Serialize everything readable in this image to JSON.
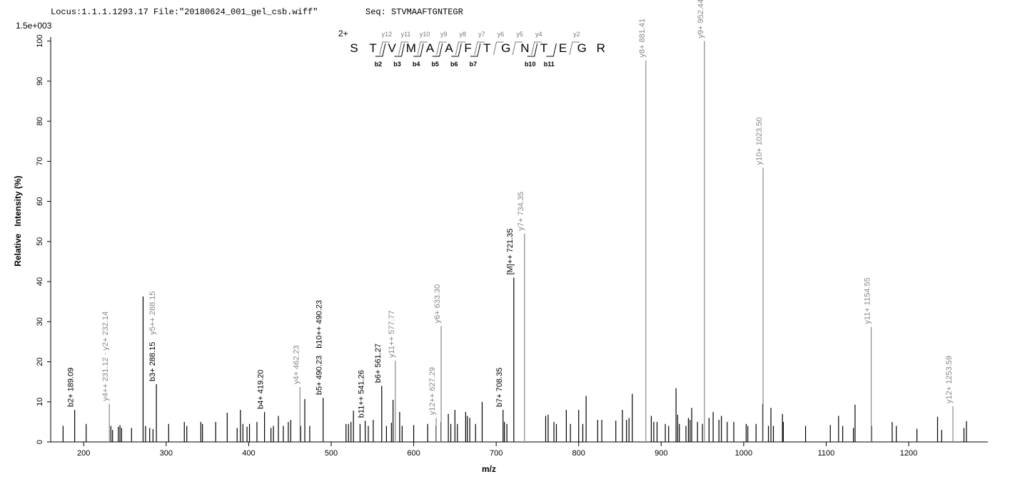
{
  "chart_data": {
    "type": "spectrum",
    "header": {
      "locus": "Locus:1.1.1.1293.17 File:\"20180624_001_gel_csb.wiff\"",
      "seq": "Seq: STVMAAFTGNTEGR"
    },
    "scale_label": "1.5e+003",
    "ylabel": "Relative   Intensity (%)",
    "xlabel": "m/z",
    "xlim": [
      160,
      1296
    ],
    "ylim": [
      0,
      101
    ],
    "xticks": [
      200,
      300,
      400,
      500,
      600,
      700,
      800,
      900,
      1000,
      1100,
      1200
    ],
    "yticks": [
      0,
      10,
      20,
      30,
      40,
      50,
      60,
      70,
      80,
      90,
      100
    ],
    "color": "#000000",
    "x": [
      175,
      203,
      233,
      235,
      242,
      244,
      246,
      258,
      275,
      280,
      284,
      303,
      322,
      325,
      342,
      344,
      360,
      374,
      386,
      390,
      393,
      398,
      401,
      410,
      427,
      430,
      436,
      442,
      448,
      451,
      463,
      468,
      474,
      518,
      521,
      524,
      527,
      535,
      545,
      551,
      567,
      573,
      575,
      583,
      586,
      600,
      617,
      627,
      633,
      642,
      645,
      650,
      653,
      663,
      665,
      668,
      675,
      683,
      710,
      713,
      760,
      763,
      770,
      773,
      785,
      790,
      800,
      805,
      809,
      823,
      828,
      845,
      853,
      858,
      861,
      865,
      888,
      891,
      895,
      905,
      909,
      918,
      920,
      922,
      930,
      933,
      935,
      937,
      944,
      950,
      958,
      963,
      970,
      973,
      980,
      988,
      1003,
      1005,
      1015,
      1023,
      1030,
      1033,
      1036,
      1047,
      1048,
      1075,
      1105,
      1115,
      1120,
      1133,
      1135,
      1155,
      1180,
      1185,
      1210,
      1235,
      1240,
      1267,
      1270
    ],
    "values": [
      4,
      4.5,
      4,
      3,
      3.8,
      4.2,
      3.5,
      3.5,
      4,
      3.5,
      3.2,
      4.5,
      5,
      4,
      5,
      4.5,
      5,
      7.3,
      3.5,
      8,
      4.5,
      3.8,
      4.5,
      5,
      3.5,
      4,
      6.5,
      4,
      5,
      5.5,
      4,
      10.7,
      4,
      4.5,
      4.5,
      5,
      7.8,
      4.5,
      4,
      5.5,
      4,
      4.8,
      10.5,
      7.5,
      4,
      4.2,
      4.5,
      4,
      5,
      7,
      4.5,
      8,
      4.5,
      7.5,
      6.5,
      6,
      4.5,
      10,
      5,
      4.5,
      6.5,
      6.8,
      5,
      4.5,
      8,
      4.5,
      8,
      4.5,
      11.5,
      5.5,
      5.5,
      5.3,
      8,
      5.5,
      6,
      12,
      6.5,
      5,
      5,
      4.5,
      4,
      13.4,
      6.8,
      4.5,
      4,
      6,
      5.5,
      8.5,
      5,
      4.5,
      6,
      7.5,
      5.5,
      6.5,
      5,
      5,
      4.5,
      4,
      4.5,
      9.5,
      4,
      8.5,
      4,
      7,
      5,
      4,
      4.2,
      6.5,
      4,
      3.5,
      9.3,
      4,
      5,
      4,
      3.3,
      6.3,
      3,
      3.5,
      5.2
    ],
    "labeled_peaks": [
      {
        "x": 189.09,
        "y": 8,
        "color": "#000000",
        "labels": [
          {
            "text": "b2+ 189.09",
            "color": "#000000"
          }
        ]
      },
      {
        "x": 231.12,
        "y": 9.5,
        "color": "#888888",
        "labels": [
          {
            "text": "y4++ 231.12 · y2+ 232.14",
            "color": "#888888"
          }
        ]
      },
      {
        "x": 272,
        "y": 36.3,
        "color": "#000000",
        "labels": []
      },
      {
        "x": 288.15,
        "y": 14.4,
        "color": "#000000",
        "labels": [
          {
            "text": "b3+ 288.15",
            "color": "#000000"
          },
          {
            "text": "y5++ 288.15",
            "color": "#888888"
          }
        ]
      },
      {
        "x": 419.2,
        "y": 7.5,
        "color": "#000000",
        "labels": [
          {
            "text": "b4+ 419.20",
            "color": "#000000"
          }
        ]
      },
      {
        "x": 462.23,
        "y": 13.7,
        "color": "#888888",
        "labels": [
          {
            "text": "y4+ 462.23",
            "color": "#888888"
          }
        ]
      },
      {
        "x": 490.23,
        "y": 11,
        "color": "#000000",
        "labels": [
          {
            "text": "b5+ 490.23",
            "color": "#000000"
          },
          {
            "text": "b10++ 490.23",
            "color": "#000000"
          }
        ]
      },
      {
        "x": 541.26,
        "y": 5.3,
        "color": "#000000",
        "labels": [
          {
            "text": "b11++ 541.26",
            "color": "#000000"
          }
        ]
      },
      {
        "x": 561.27,
        "y": 14,
        "color": "#000000",
        "labels": [
          {
            "text": "b6+ 561.27",
            "color": "#000000"
          }
        ]
      },
      {
        "x": 577.77,
        "y": 20.3,
        "color": "#888888",
        "labels": [
          {
            "text": "y11++ 577.77",
            "color": "#888888"
          }
        ]
      },
      {
        "x": 627.29,
        "y": 6,
        "color": "#888888",
        "labels": [
          {
            "text": "y12++ 627.29",
            "color": "#888888"
          }
        ]
      },
      {
        "x": 633.3,
        "y": 28.9,
        "color": "#888888",
        "labels": [
          {
            "text": "y6+ 633.30",
            "color": "#888888"
          }
        ]
      },
      {
        "x": 708.35,
        "y": 8,
        "color": "#000000",
        "labels": [
          {
            "text": "b7+ 708.35",
            "color": "#000000"
          }
        ]
      },
      {
        "x": 721.35,
        "y": 41,
        "color": "#000000",
        "labels": [
          {
            "text": "[M]++ 721.35",
            "color": "#000000"
          }
        ]
      },
      {
        "x": 734.35,
        "y": 52,
        "color": "#888888",
        "labels": [
          {
            "text": "y7+ 734.35",
            "color": "#888888"
          }
        ]
      },
      {
        "x": 881.41,
        "y": 95.2,
        "color": "#888888",
        "labels": [
          {
            "text": "y8+ 881.41",
            "color": "#888888"
          }
        ]
      },
      {
        "x": 952.44,
        "y": 100,
        "color": "#888888",
        "labels": [
          {
            "text": "y9+ 952.44",
            "color": "#888888"
          }
        ]
      },
      {
        "x": 1023.5,
        "y": 68.4,
        "color": "#888888",
        "labels": [
          {
            "text": "y10+ 1023.50",
            "color": "#888888"
          }
        ]
      },
      {
        "x": 1154.55,
        "y": 28.7,
        "color": "#888888",
        "labels": [
          {
            "text": "y11+ 1154.55",
            "color": "#888888"
          }
        ]
      },
      {
        "x": 1253.59,
        "y": 8.9,
        "color": "#888888",
        "labels": [
          {
            "text": "y12+ 1253.59",
            "color": "#888888"
          }
        ]
      }
    ],
    "sequence": {
      "charge": "2+",
      "residues": [
        "S",
        "T",
        "V",
        "M",
        "A",
        "A",
        "F",
        "T",
        "G",
        "N",
        "T",
        "E",
        "G",
        "R"
      ],
      "y_ions": [
        "y12",
        "y11",
        "y10",
        "y9",
        "y8",
        "y7",
        "y6",
        "y5",
        "y4",
        "y2"
      ],
      "b_ions": [
        "b2",
        "b3",
        "b4",
        "b5",
        "b6",
        "b7",
        "b10",
        "b11"
      ]
    }
  }
}
